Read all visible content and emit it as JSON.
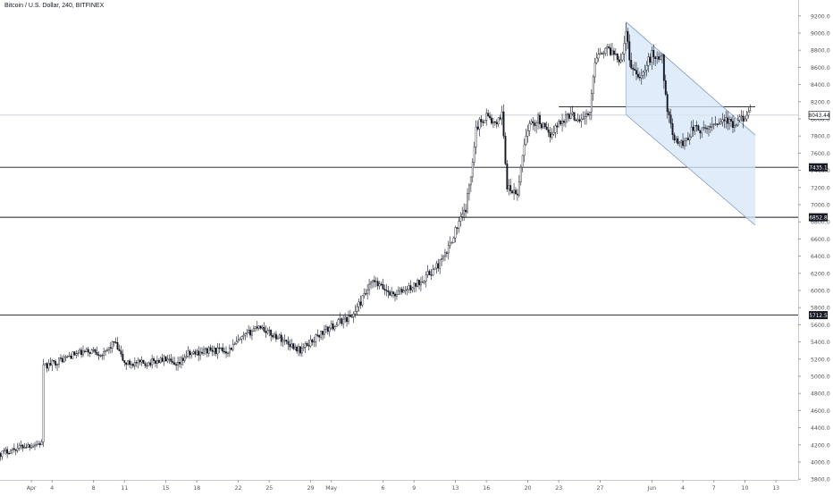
{
  "chart_title": "Bitcoin / U.S. Dollar, 240, BITFINEX",
  "colors": {
    "candle": "#131722",
    "grid_line": "#d7d9de",
    "horizontal_level": "#131722",
    "channel_fill": "#d6e6f8",
    "channel_stroke": "#8fa3c4",
    "axis_text": "#555555",
    "price_tag_bg": "#131722",
    "price_tag_text": "#ffffff",
    "current_tag_bg": "#ffffff"
  },
  "chart_data": {
    "type": "candlestick",
    "title": "Bitcoin / U.S. Dollar, 240, BITFINEX",
    "ylim": [
      3800,
      9300
    ],
    "xlim": [
      -1,
      71.5
    ],
    "y_ticks": [
      "3800.0",
      "4000.0",
      "4200.0",
      "4400.0",
      "4600.0",
      "4800.0",
      "5000.0",
      "5200.0",
      "5400.0",
      "5600.0",
      "5800.0",
      "6000.0",
      "6200.0",
      "6400.0",
      "6600.0",
      "6800.0",
      "7000.0",
      "7200.0",
      "7400.0",
      "7600.0",
      "7800.0",
      "8000.0",
      "8200.0",
      "8400.0",
      "8600.0",
      "8800.0",
      "9000.0",
      "9200.0"
    ],
    "x_ticks": [
      {
        "label": "Apr",
        "day": 2
      },
      {
        "label": "4",
        "day": 4
      },
      {
        "label": "8",
        "day": 8
      },
      {
        "label": "11",
        "day": 11
      },
      {
        "label": "15",
        "day": 15
      },
      {
        "label": "18",
        "day": 18
      },
      {
        "label": "22",
        "day": 22
      },
      {
        "label": "25",
        "day": 25
      },
      {
        "label": "29",
        "day": 29
      },
      {
        "label": "May",
        "day": 31
      },
      {
        "label": "6",
        "day": 36
      },
      {
        "label": "9",
        "day": 39
      },
      {
        "label": "13",
        "day": 43
      },
      {
        "label": "16",
        "day": 46
      },
      {
        "label": "20",
        "day": 50
      },
      {
        "label": "23",
        "day": 53
      },
      {
        "label": "27",
        "day": 57
      },
      {
        "label": "Jun",
        "day": 62
      },
      {
        "label": "4",
        "day": 65
      },
      {
        "label": "7",
        "day": 68
      },
      {
        "label": "10",
        "day": 71
      },
      {
        "label": "13",
        "day": 74
      }
    ],
    "close_path": [
      [
        -1,
        4100
      ],
      [
        1,
        4180
      ],
      [
        3,
        4220
      ],
      [
        3.1,
        5100
      ],
      [
        4,
        5150
      ],
      [
        6,
        5250
      ],
      [
        8,
        5300
      ],
      [
        9,
        5250
      ],
      [
        10,
        5400
      ],
      [
        11,
        5150
      ],
      [
        13,
        5150
      ],
      [
        15,
        5200
      ],
      [
        16,
        5100
      ],
      [
        17,
        5250
      ],
      [
        19,
        5300
      ],
      [
        21,
        5300
      ],
      [
        22,
        5400
      ],
      [
        23,
        5500
      ],
      [
        24,
        5600
      ],
      [
        25,
        5500
      ],
      [
        26,
        5450
      ],
      [
        28,
        5300
      ],
      [
        30,
        5500
      ],
      [
        32,
        5650
      ],
      [
        33,
        5700
      ],
      [
        34,
        5900
      ],
      [
        35,
        6100
      ],
      [
        37,
        5950
      ],
      [
        39,
        6050
      ],
      [
        40,
        6150
      ],
      [
        41,
        6250
      ],
      [
        42,
        6400
      ],
      [
        43,
        6700
      ],
      [
        44,
        6950
      ],
      [
        44.5,
        7350
      ],
      [
        45,
        7900
      ],
      [
        46,
        8050
      ],
      [
        47,
        7900
      ],
      [
        47.5,
        8100
      ],
      [
        48,
        7200
      ],
      [
        49,
        7100
      ],
      [
        49.5,
        7600
      ],
      [
        50,
        7900
      ],
      [
        51,
        8000
      ],
      [
        52,
        7800
      ],
      [
        53,
        7950
      ],
      [
        54,
        8050
      ],
      [
        55,
        8000
      ],
      [
        56,
        8050
      ],
      [
        56.5,
        8700
      ],
      [
        57,
        8800
      ],
      [
        58,
        8800
      ],
      [
        59,
        8700
      ],
      [
        59.5,
        9000
      ],
      [
        60,
        8600
      ],
      [
        61,
        8500
      ],
      [
        62,
        8750
      ],
      [
        63,
        8700
      ],
      [
        63.5,
        8100
      ],
      [
        64,
        7800
      ],
      [
        65,
        7700
      ],
      [
        66,
        7900
      ],
      [
        67,
        7850
      ],
      [
        68,
        7950
      ],
      [
        69,
        8000
      ],
      [
        70,
        7900
      ],
      [
        71,
        8050
      ]
    ],
    "horizontal_levels": [
      {
        "value": 7435.1,
        "label": "7435.1"
      },
      {
        "value": 6852.8,
        "label": "6852.8"
      },
      {
        "value": 5712.5,
        "label": "5712.5"
      }
    ],
    "current_price": {
      "value": 8043.44,
      "label": "8043.44"
    },
    "resistance_line": {
      "x_start": 53,
      "x_end": 72,
      "value": 8140
    },
    "descending_channel": {
      "upper": [
        [
          59.5,
          9130
        ],
        [
          72,
          7810
        ]
      ],
      "lower": [
        [
          59.5,
          8050
        ],
        [
          72,
          6760
        ]
      ]
    }
  }
}
